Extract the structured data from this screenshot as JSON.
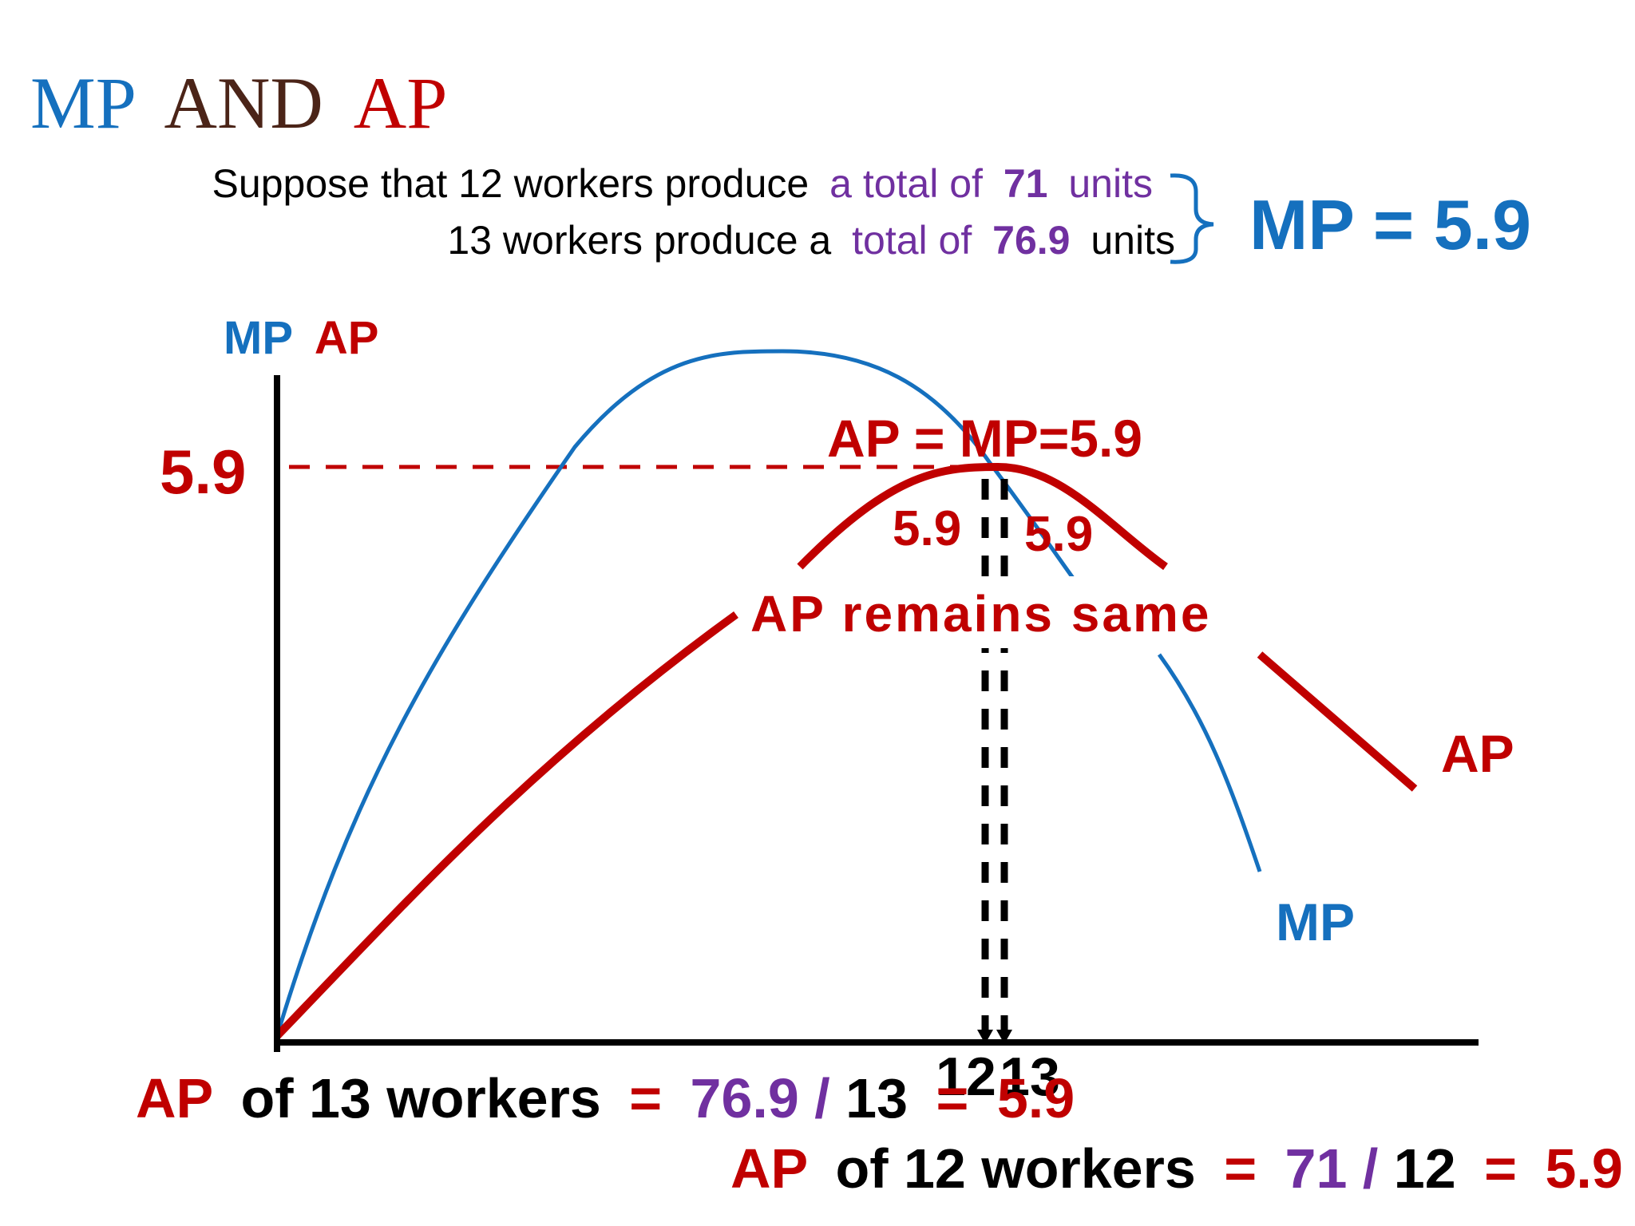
{
  "title": {
    "mp": "MP",
    "and": "AND",
    "ap": "AP"
  },
  "premise": {
    "line1": {
      "lead": "Suppose that 12 workers produce",
      "mid": "a total of",
      "num": "71",
      "tail": "units"
    },
    "line2": {
      "lead": "13 workers produce a",
      "mid": "total of",
      "num": "76.9",
      "tail": "units"
    },
    "result": "MP = 5.9"
  },
  "axis": {
    "y_label_mp": "MP",
    "y_label_ap": "AP",
    "y_value": "5.9",
    "x_tick_12": "12",
    "x_tick_13": "13"
  },
  "annotations": {
    "equal": "AP = MP=5.9",
    "left_value": "5.9",
    "right_value": "5.9",
    "remains": "AP remains same",
    "curve_ap": "AP",
    "curve_mp": "MP"
  },
  "formula13": {
    "ap": "AP",
    "text": "of 13 workers",
    "eq1": "=",
    "num": "76.9",
    "slash": "/",
    "den": "13",
    "eq2": "=",
    "res": "5.9"
  },
  "formula12": {
    "ap": "AP",
    "text": "of 12 workers",
    "eq1": "=",
    "num": "71",
    "slash": "/",
    "den": "12",
    "eq2": "=",
    "res": "5.9"
  },
  "colors": {
    "blue": "#1570be",
    "red": "#c00000",
    "purple": "#7030a0",
    "brown": "#4b2418",
    "black": "#000000"
  }
}
